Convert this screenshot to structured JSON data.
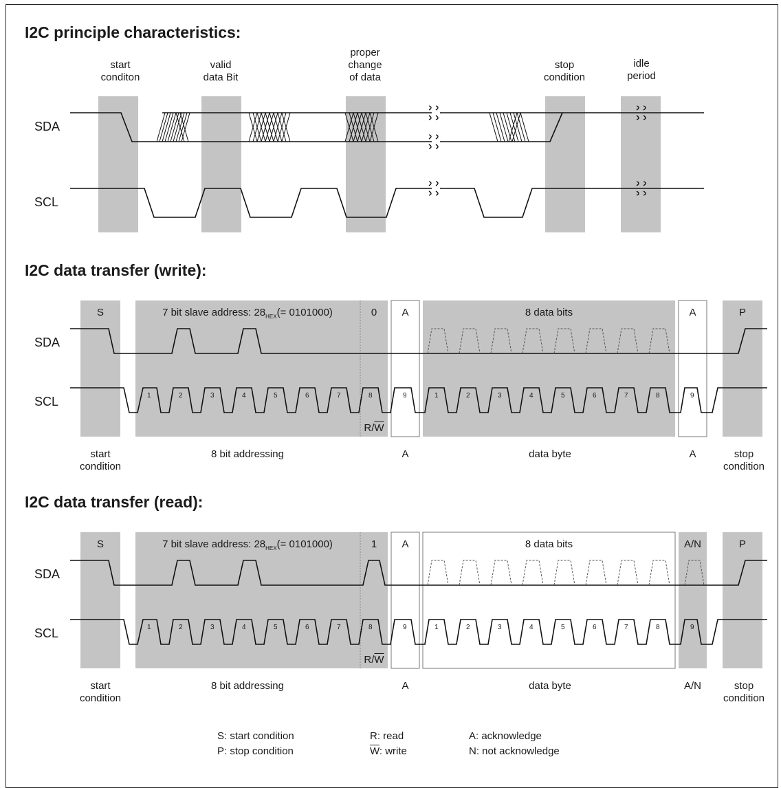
{
  "sections": {
    "principle": {
      "title": "I2C principle characteristics:",
      "phases": [
        {
          "text": "start\nconditon"
        },
        {
          "text": "valid\ndata Bit"
        },
        {
          "text": "proper\nchange\nof data"
        },
        {
          "text": "stop\ncondition"
        },
        {
          "text": "idle\nperiod"
        }
      ],
      "signals": {
        "sda": "SDA",
        "scl": "SCL"
      }
    },
    "write": {
      "title": "I2C data transfer (write):",
      "cells": {
        "start": "S",
        "address": "7 bit slave address: 28",
        "address_sub": "HEX",
        "address_tail": "(= 0101000)",
        "rw_bit": "0",
        "ack1": "A",
        "data": "8 data bits",
        "ack2": "A",
        "stop": "P"
      },
      "rw_label": "R/W",
      "bottom": {
        "start": "start\ncondition",
        "addressing": "8 bit addressing",
        "ack1": "A",
        "data": "data byte",
        "ack2": "A",
        "stop": "stop\ncondition"
      },
      "signals": {
        "sda": "SDA",
        "scl": "SCL"
      }
    },
    "read": {
      "title": "I2C data transfer (read):",
      "cells": {
        "start": "S",
        "address": "7 bit slave address: 28",
        "address_sub": "HEX",
        "address_tail": "(= 0101000)",
        "rw_bit": "1",
        "ack1": "A",
        "data": "8 data bits",
        "ack2": "A/N",
        "stop": "P"
      },
      "rw_label": "R/W",
      "bottom": {
        "start": "start\ncondition",
        "addressing": "8 bit addressing",
        "ack1": "A",
        "data": "data byte",
        "ack2": "A/N",
        "stop": "stop\ncondition"
      },
      "signals": {
        "sda": "SDA",
        "scl": "SCL"
      }
    }
  },
  "clock_numbers_address": [
    "1",
    "2",
    "3",
    "4",
    "5",
    "6",
    "7",
    "8"
  ],
  "clock_number_ack": "9",
  "clock_numbers_data": [
    "1",
    "2",
    "3",
    "4",
    "5",
    "6",
    "7",
    "8"
  ],
  "legend": {
    "s": "S:  start condition",
    "p": "P:  stop condition",
    "r": "R:  read",
    "w_letter": "W",
    "w_rest": ": write",
    "a": "A: acknowledge",
    "n": "N: not acknowledge"
  },
  "colors": {
    "band": "#c4c4c4",
    "line": "#111111"
  }
}
